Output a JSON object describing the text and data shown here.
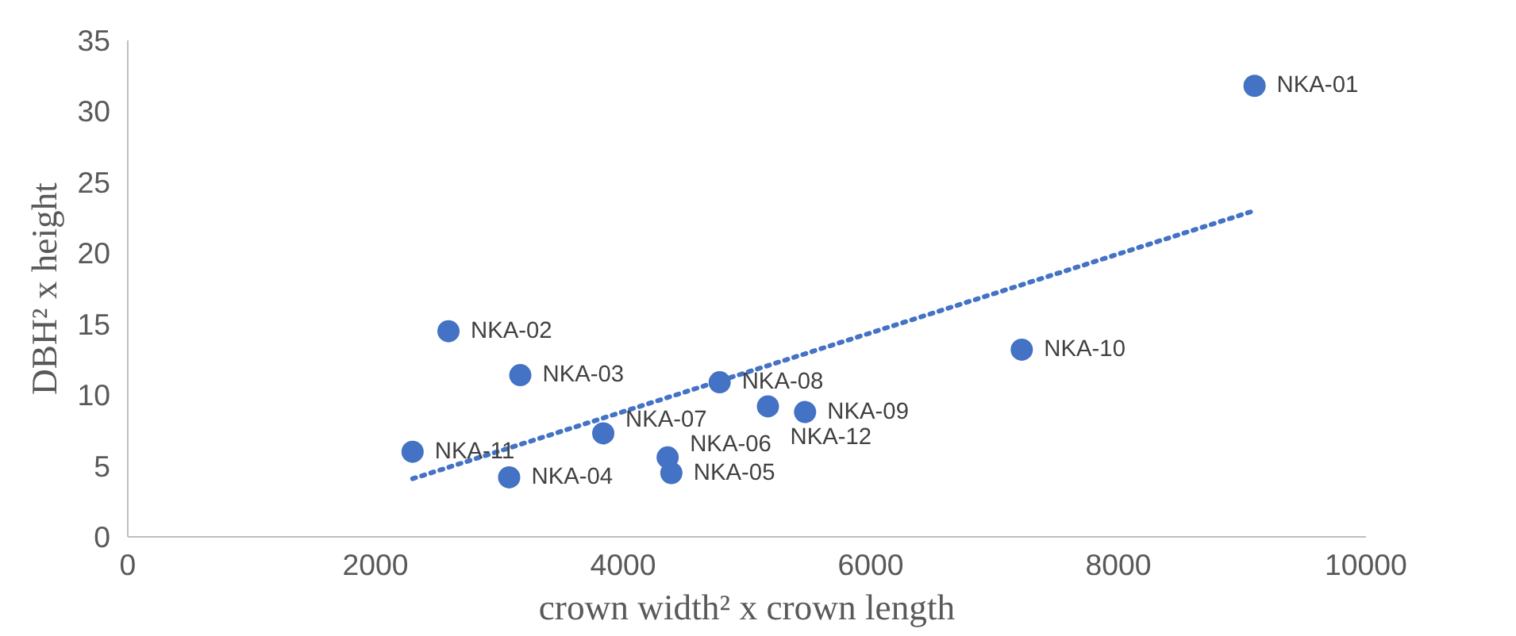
{
  "chart_data": {
    "type": "scatter",
    "xlabel": "crown width² x crown length",
    "ylabel": "DBH² x height",
    "xlim": [
      0,
      10000
    ],
    "xticks": [
      0,
      2000,
      4000,
      6000,
      8000,
      10000
    ],
    "ylim": [
      0,
      35
    ],
    "yticks": [
      0,
      5,
      10,
      15,
      20,
      25,
      30,
      35
    ],
    "grid": false,
    "marker": "circle",
    "series": [
      {
        "color": "#4472c4",
        "x": [
          9100,
          2590,
          3170,
          3080,
          4390,
          4360,
          3840,
          4780,
          5470,
          7220,
          2300,
          5170
        ],
        "values": [
          31.8,
          14.5,
          11.4,
          4.2,
          4.5,
          5.6,
          7.3,
          10.9,
          8.8,
          13.2,
          6.0,
          9.2
        ]
      },
      {
        "type": "line",
        "line_style": "dotted",
        "marker": "none",
        "color": "#4472c4",
        "x": [
          2300,
          9100
        ],
        "values": [
          4.1,
          23.0
        ]
      }
    ],
    "annotations": [
      {
        "text": "NKA-01",
        "x": 9100,
        "y": 31.8
      },
      {
        "text": "NKA-02",
        "x": 2590,
        "y": 14.5
      },
      {
        "text": "NKA-03",
        "x": 3170,
        "y": 11.4
      },
      {
        "text": "NKA-04",
        "x": 3080,
        "y": 4.2
      },
      {
        "text": "NKA-05",
        "x": 4390,
        "y": 4.5
      },
      {
        "text": "NKA-06",
        "x": 4360,
        "y": 5.6
      },
      {
        "text": "NKA-07",
        "x": 3840,
        "y": 7.3
      },
      {
        "text": "NKA-08",
        "x": 4780,
        "y": 10.9
      },
      {
        "text": "NKA-09",
        "x": 5470,
        "y": 8.8
      },
      {
        "text": "NKA-10",
        "x": 7220,
        "y": 13.2
      },
      {
        "text": "NKA-11",
        "x": 2300,
        "y": 6.0
      },
      {
        "text": "NKA-12",
        "x": 5170,
        "y": 9.2
      }
    ]
  }
}
